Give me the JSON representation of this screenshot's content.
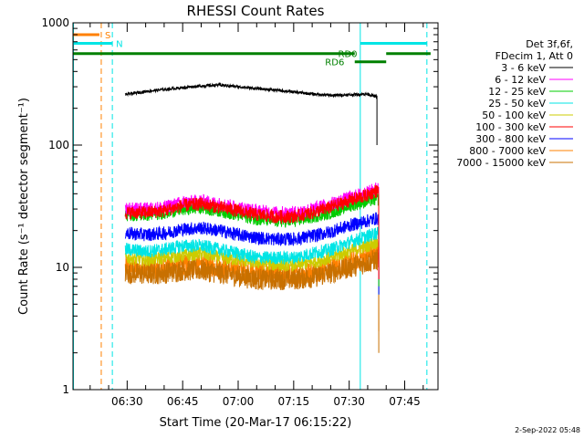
{
  "chart_data": {
    "type": "line",
    "title": "RHESSI Count Rates",
    "xlabel": "Start Time (20-Mar-17 06:15:22)",
    "ylabel": "Count Rate (s⁻¹ detector segment⁻¹)",
    "y_scale": "log",
    "ylim": [
      1,
      1000
    ],
    "y_ticks": [
      {
        "value": 1,
        "label": "1"
      },
      {
        "value": 10,
        "label": "10"
      },
      {
        "value": 100,
        "label": "100"
      },
      {
        "value": 1000,
        "label": "1000"
      }
    ],
    "x_range": [
      "06:15:22",
      "07:54:00"
    ],
    "x_ticks": [
      {
        "value": "06:30",
        "label": "06:30"
      },
      {
        "value": "06:45",
        "label": "06:45"
      },
      {
        "value": "07:00",
        "label": "07:00"
      },
      {
        "value": "07:15",
        "label": "07:15"
      },
      {
        "value": "07:30",
        "label": "07:30"
      },
      {
        "value": "07:45",
        "label": "07:45"
      }
    ],
    "legend": {
      "placement": "top-right outside",
      "header": [
        "Det 3f,6f,",
        "FDecim 1, Att 0"
      ]
    },
    "series": [
      {
        "name": "3 - 6 keV",
        "color": "#000000",
        "start": "06:29:30",
        "end": "07:37:30",
        "x": [
          "06:30",
          "06:35",
          "06:40",
          "06:45",
          "06:50",
          "06:55",
          "07:00",
          "07:05",
          "07:10",
          "07:15",
          "07:20",
          "07:25",
          "07:30",
          "07:35",
          "07:37"
        ],
        "values": [
          260,
          275,
          285,
          295,
          305,
          310,
          300,
          290,
          282,
          272,
          262,
          255,
          258,
          262,
          250
        ],
        "drop_to": 100
      },
      {
        "name": "6 - 12 keV",
        "color": "#ff00ff",
        "start": "06:29:30",
        "end": "07:38:00",
        "x": [
          "06:30",
          "06:35",
          "06:40",
          "06:45",
          "06:50",
          "06:55",
          "07:00",
          "07:05",
          "07:10",
          "07:15",
          "07:20",
          "07:25",
          "07:30",
          "07:35",
          "07:37"
        ],
        "values": [
          30,
          30,
          31,
          34,
          35,
          33,
          31,
          29,
          28,
          28,
          30,
          33,
          37,
          41,
          44
        ],
        "drop_to": 8
      },
      {
        "name": "12 - 25 keV",
        "color": "#00cc00",
        "start": "06:29:30",
        "end": "07:38:00",
        "x": [
          "06:30",
          "06:35",
          "06:40",
          "06:45",
          "06:50",
          "06:55",
          "07:00",
          "07:05",
          "07:10",
          "07:15",
          "07:20",
          "07:25",
          "07:30",
          "07:35",
          "07:37"
        ],
        "values": [
          27,
          27,
          28,
          30,
          31,
          29,
          27,
          25,
          24,
          24,
          26,
          28,
          32,
          35,
          36
        ],
        "drop_to": 7
      },
      {
        "name": "25 - 50 keV",
        "color": "#00e5e5",
        "start": "06:29:30",
        "end": "07:38:00",
        "x": [
          "06:30",
          "06:35",
          "06:40",
          "06:45",
          "06:50",
          "06:55",
          "07:00",
          "07:05",
          "07:10",
          "07:15",
          "07:20",
          "07:25",
          "07:30",
          "07:35",
          "07:37"
        ],
        "values": [
          14,
          13.5,
          14,
          15,
          15,
          14,
          13,
          12,
          12,
          12,
          13,
          14,
          16,
          18,
          19
        ],
        "drop_to": 6
      },
      {
        "name": "50 - 100 keV",
        "color": "#cccc00",
        "start": "06:29:30",
        "end": "07:38:00",
        "x": [
          "06:30",
          "06:35",
          "06:40",
          "06:45",
          "06:50",
          "06:55",
          "07:00",
          "07:05",
          "07:10",
          "07:15",
          "07:20",
          "07:25",
          "07:30",
          "07:35",
          "07:37"
        ],
        "values": [
          12,
          11.5,
          12,
          12.5,
          13,
          12,
          11.5,
          11,
          10.5,
          10.5,
          11,
          12,
          13.5,
          15,
          16
        ],
        "drop_to": 6
      },
      {
        "name": "100 - 300 keV",
        "color": "#ff0000",
        "start": "06:29:30",
        "end": "07:38:00",
        "x": [
          "06:30",
          "06:35",
          "06:40",
          "06:45",
          "06:50",
          "06:55",
          "07:00",
          "07:05",
          "07:10",
          "07:15",
          "07:20",
          "07:25",
          "07:30",
          "07:35",
          "07:37"
        ],
        "values": [
          28,
          28,
          29,
          32,
          33,
          31,
          29,
          27,
          26,
          26,
          28,
          31,
          35,
          39,
          42
        ],
        "drop_to": 8
      },
      {
        "name": "300 - 800 keV",
        "color": "#0000ff",
        "start": "06:29:30",
        "end": "07:38:00",
        "x": [
          "06:30",
          "06:35",
          "06:40",
          "06:45",
          "06:50",
          "06:55",
          "07:00",
          "07:05",
          "07:10",
          "07:15",
          "07:20",
          "07:25",
          "07:30",
          "07:35",
          "07:37"
        ],
        "values": [
          19,
          18.5,
          19,
          20.5,
          21,
          20,
          18.5,
          17.5,
          17,
          17,
          18,
          19.5,
          22,
          24,
          25
        ],
        "drop_to": 6
      },
      {
        "name": "800 - 7000 keV",
        "color": "#ff8000",
        "start": "06:29:30",
        "end": "07:38:00",
        "x": [
          "06:30",
          "06:35",
          "06:40",
          "06:45",
          "06:50",
          "06:55",
          "07:00",
          "07:05",
          "07:10",
          "07:15",
          "07:20",
          "07:25",
          "07:30",
          "07:35",
          "07:37"
        ],
        "values": [
          10,
          9.8,
          10,
          10.5,
          10.5,
          10,
          9.5,
          9,
          8.8,
          8.8,
          9.2,
          10,
          11,
          12.5,
          13
        ],
        "drop_to": 3
      },
      {
        "name": "7000 - 15000 keV",
        "color": "#c87000",
        "start": "06:29:30",
        "end": "07:38:00",
        "x": [
          "06:30",
          "06:35",
          "06:40",
          "06:45",
          "06:50",
          "06:55",
          "07:00",
          "07:05",
          "07:10",
          "07:15",
          "07:20",
          "07:25",
          "07:30",
          "07:35",
          "07:37"
        ],
        "values": [
          9,
          8.8,
          9,
          9.5,
          9.5,
          9,
          8.5,
          8,
          8,
          8,
          8.3,
          9,
          10,
          11,
          11.5
        ],
        "drop_to": 2
      }
    ],
    "vertical_lines": [
      {
        "time": "06:15:30",
        "color": "#00e5e5",
        "style": "solid"
      },
      {
        "time": "06:23:00",
        "color": "#ff8000",
        "style": "dashed"
      },
      {
        "time": "06:26:00",
        "color": "#00e5e5",
        "style": "dashed"
      },
      {
        "time": "07:33:00",
        "color": "#00e5e5",
        "style": "solid"
      },
      {
        "time": "07:51:00",
        "color": "#00e5e5",
        "style": "dashed"
      }
    ],
    "flag_bars": [
      {
        "label": "S",
        "color": "#ff8000",
        "level": 800,
        "segments": [
          [
            "06:15:22",
            "06:22:30"
          ]
        ],
        "label_at": "06:24:00"
      },
      {
        "label": "N",
        "color": "#00e5e5",
        "level": 680,
        "segments": [
          [
            "06:15:22",
            "06:26:00"
          ],
          [
            "07:33:00",
            "07:51:00"
          ]
        ],
        "label_at": "06:27:00"
      },
      {
        "label": "RD0",
        "color": "#008000",
        "level": 560,
        "segments": [
          [
            "06:15:22",
            "07:31:30"
          ],
          [
            "07:40:00",
            "07:52:00"
          ]
        ],
        "label_at": "07:27:00"
      },
      {
        "label": "RD6",
        "color": "#008000",
        "level": 480,
        "segments": [
          [
            "07:31:30",
            "07:40:00"
          ]
        ],
        "label_at": "07:23:30"
      }
    ]
  },
  "footer": {
    "timestamp": "2-Sep-2022 05:48"
  }
}
